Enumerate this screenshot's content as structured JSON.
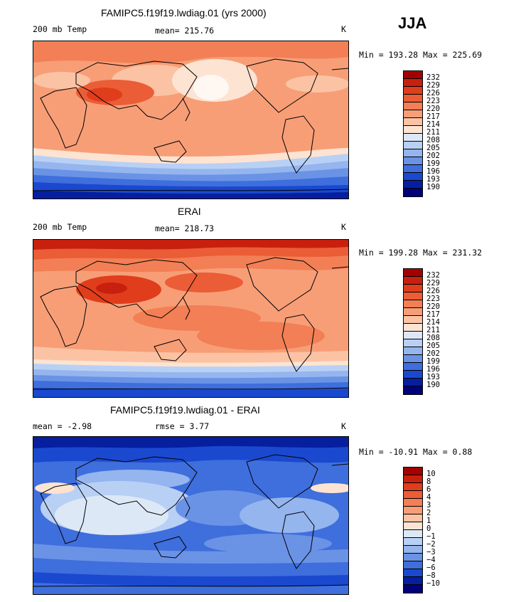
{
  "season": "JJA",
  "panels": [
    {
      "title": "FAMIPC5.f19f19.lwdiag.01 (yrs 2000)",
      "variable": "200 mb Temp",
      "stat_text": "mean=  215.76",
      "units": "K",
      "minmax": "Min = 193.28 Max = 225.69",
      "cbar_labels": [
        "232",
        "229",
        "226",
        "223",
        "220",
        "217",
        "214",
        "211",
        "208",
        "205",
        "202",
        "199",
        "196",
        "193",
        "190"
      ],
      "cbar_colors": [
        "#a50000",
        "#c8200e",
        "#e03d1c",
        "#eb5d36",
        "#f27f55",
        "#f79e77",
        "#fbc3a4",
        "#fde3d2",
        "#dde8f7",
        "#b9d0f5",
        "#94b5ee",
        "#6a93e6",
        "#3f6edd",
        "#1a49cf",
        "#061f9e",
        "#00007a"
      ]
    },
    {
      "title": "ERAI",
      "variable": "200 mb Temp",
      "stat_text": "mean=  218.73",
      "units": "K",
      "minmax": "Min = 199.28 Max = 231.32",
      "cbar_labels": [
        "232",
        "229",
        "226",
        "223",
        "220",
        "217",
        "214",
        "211",
        "208",
        "205",
        "202",
        "199",
        "196",
        "193",
        "190"
      ],
      "cbar_colors": [
        "#a50000",
        "#c8200e",
        "#e03d1c",
        "#eb5d36",
        "#f27f55",
        "#f79e77",
        "#fbc3a4",
        "#fde3d2",
        "#dde8f7",
        "#b9d0f5",
        "#94b5ee",
        "#6a93e6",
        "#3f6edd",
        "#1a49cf",
        "#061f9e",
        "#00007a"
      ]
    },
    {
      "title": "FAMIPC5.f19f19.lwdiag.01 - ERAI",
      "variable": "mean =   -2.98",
      "stat_text": "rmse =    3.77",
      "units": "K",
      "minmax": "Min = -10.91 Max =   0.88",
      "cbar_labels": [
        "10",
        "8",
        "6",
        "4",
        "3",
        "2",
        "1",
        "0",
        "−1",
        "−2",
        "−3",
        "−4",
        "−6",
        "−8",
        "−10"
      ],
      "cbar_colors": [
        "#a50000",
        "#c8200e",
        "#e03d1c",
        "#eb5d36",
        "#f27f55",
        "#f79e77",
        "#fbc3a4",
        "#fde3d2",
        "#dde8f7",
        "#b9d0f5",
        "#94b5ee",
        "#6a93e6",
        "#3f6edd",
        "#1a49cf",
        "#061f9e",
        "#00007a"
      ]
    }
  ]
}
